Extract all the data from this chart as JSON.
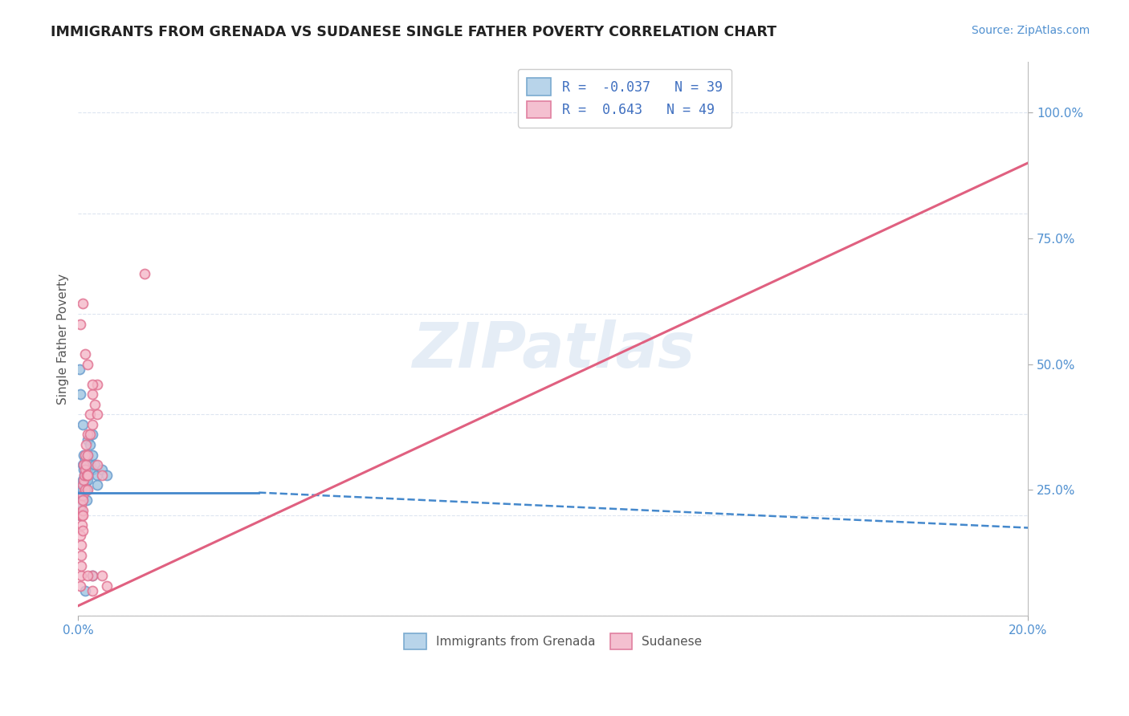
{
  "title": "IMMIGRANTS FROM GRENADA VS SUDANESE SINGLE FATHER POVERTY CORRELATION CHART",
  "source": "Source: ZipAtlas.com",
  "ylabel": "Single Father Poverty",
  "ylabel_right_ticks": [
    "100.0%",
    "75.0%",
    "50.0%",
    "25.0%"
  ],
  "ylabel_right_vals": [
    1.0,
    0.75,
    0.5,
    0.25
  ],
  "legend_entries": [
    {
      "label": "Immigrants from Grenada",
      "R": -0.037,
      "N": 39
    },
    {
      "label": "Sudanese",
      "R": 0.643,
      "N": 49
    }
  ],
  "watermark": "ZIPatlas",
  "blue_scatter": [
    [
      0.0005,
      0.22
    ],
    [
      0.0005,
      0.2
    ],
    [
      0.0007,
      0.24
    ],
    [
      0.0007,
      0.21
    ],
    [
      0.0008,
      0.23
    ],
    [
      0.0009,
      0.26
    ],
    [
      0.001,
      0.3
    ],
    [
      0.001,
      0.27
    ],
    [
      0.001,
      0.25
    ],
    [
      0.001,
      0.23
    ],
    [
      0.0012,
      0.32
    ],
    [
      0.0012,
      0.29
    ],
    [
      0.0013,
      0.28
    ],
    [
      0.0014,
      0.26
    ],
    [
      0.0015,
      0.31
    ],
    [
      0.0015,
      0.28
    ],
    [
      0.0016,
      0.3
    ],
    [
      0.0017,
      0.27
    ],
    [
      0.0018,
      0.25
    ],
    [
      0.0018,
      0.23
    ],
    [
      0.002,
      0.35
    ],
    [
      0.002,
      0.32
    ],
    [
      0.002,
      0.29
    ],
    [
      0.002,
      0.27
    ],
    [
      0.0025,
      0.34
    ],
    [
      0.0025,
      0.3
    ],
    [
      0.003,
      0.36
    ],
    [
      0.003,
      0.32
    ],
    [
      0.003,
      0.29
    ],
    [
      0.0035,
      0.3
    ],
    [
      0.004,
      0.28
    ],
    [
      0.004,
      0.26
    ],
    [
      0.005,
      0.29
    ],
    [
      0.006,
      0.28
    ],
    [
      0.0003,
      0.49
    ],
    [
      0.0005,
      0.44
    ],
    [
      0.001,
      0.38
    ],
    [
      0.0015,
      0.05
    ],
    [
      0.003,
      0.08
    ]
  ],
  "pink_scatter": [
    [
      0.0004,
      0.2
    ],
    [
      0.0005,
      0.16
    ],
    [
      0.0006,
      0.14
    ],
    [
      0.0006,
      0.12
    ],
    [
      0.0007,
      0.22
    ],
    [
      0.0008,
      0.2
    ],
    [
      0.0008,
      0.18
    ],
    [
      0.0009,
      0.24
    ],
    [
      0.0009,
      0.21
    ],
    [
      0.001,
      0.26
    ],
    [
      0.001,
      0.23
    ],
    [
      0.001,
      0.2
    ],
    [
      0.001,
      0.17
    ],
    [
      0.0012,
      0.3
    ],
    [
      0.0012,
      0.27
    ],
    [
      0.0013,
      0.28
    ],
    [
      0.0014,
      0.25
    ],
    [
      0.0015,
      0.32
    ],
    [
      0.0015,
      0.29
    ],
    [
      0.0016,
      0.34
    ],
    [
      0.0017,
      0.3
    ],
    [
      0.0018,
      0.28
    ],
    [
      0.002,
      0.36
    ],
    [
      0.002,
      0.32
    ],
    [
      0.002,
      0.28
    ],
    [
      0.002,
      0.25
    ],
    [
      0.0025,
      0.4
    ],
    [
      0.0025,
      0.36
    ],
    [
      0.003,
      0.44
    ],
    [
      0.003,
      0.38
    ],
    [
      0.003,
      0.08
    ],
    [
      0.003,
      0.05
    ],
    [
      0.0035,
      0.42
    ],
    [
      0.004,
      0.46
    ],
    [
      0.004,
      0.4
    ],
    [
      0.005,
      0.28
    ],
    [
      0.0005,
      0.58
    ],
    [
      0.001,
      0.62
    ],
    [
      0.0015,
      0.52
    ],
    [
      0.002,
      0.5
    ],
    [
      0.003,
      0.46
    ],
    [
      0.004,
      0.3
    ],
    [
      0.005,
      0.08
    ],
    [
      0.006,
      0.06
    ],
    [
      0.0004,
      0.06
    ],
    [
      0.0006,
      0.08
    ],
    [
      0.0007,
      0.1
    ],
    [
      0.002,
      0.08
    ],
    [
      0.014,
      0.68
    ]
  ],
  "blue_line_solid": [
    [
      0.0,
      0.245
    ],
    [
      0.038,
      0.245
    ]
  ],
  "blue_line_dashed": [
    [
      0.038,
      0.245
    ],
    [
      0.2,
      0.175
    ]
  ],
  "pink_line": [
    [
      0.0,
      0.02
    ],
    [
      0.2,
      0.9
    ]
  ],
  "xmin": 0.0,
  "xmax": 0.2,
  "ymin": 0.0,
  "ymax": 1.1,
  "background_color": "#ffffff",
  "scatter_size": 75,
  "blue_scatter_color": "#9ec4e0",
  "blue_scatter_edge": "#6699cc",
  "pink_scatter_color": "#f4b8c8",
  "pink_scatter_edge": "#e07090",
  "blue_line_color": "#4488cc",
  "pink_line_color": "#e06080",
  "grid_color": "#dde5f0",
  "title_color": "#222222",
  "source_color": "#5090d0",
  "legend_R_color": "#4070c0",
  "axis_label_color": "#5090d0"
}
